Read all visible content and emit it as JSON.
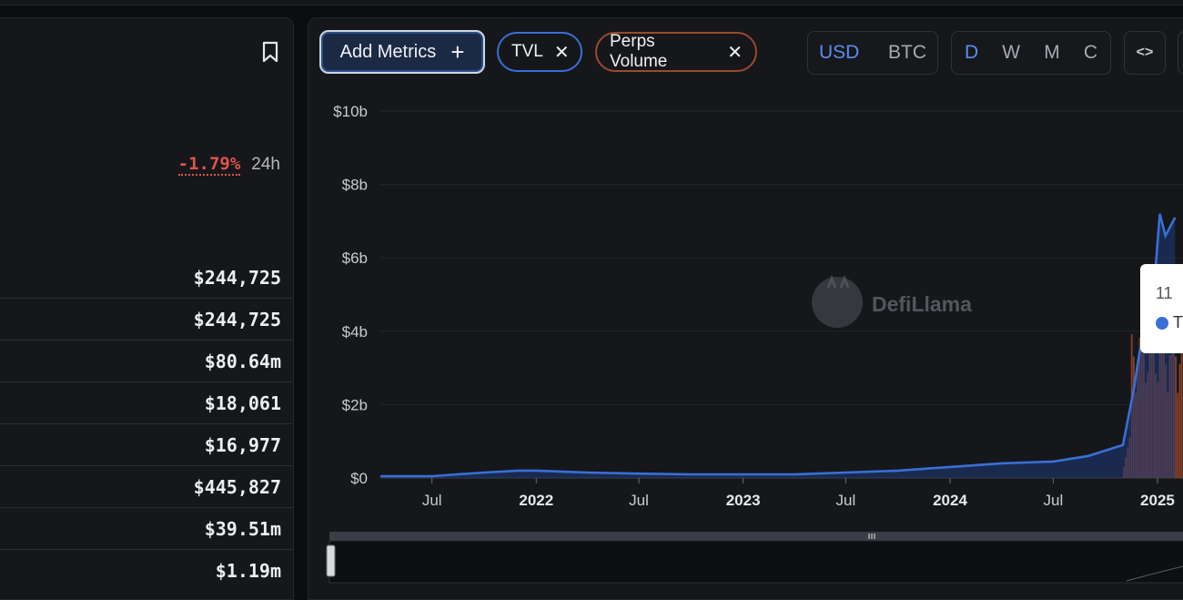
{
  "left": {
    "change": {
      "value": "-1.79%",
      "period": "24h"
    },
    "rows": [
      "$244,725",
      "$244,725",
      "$80.64m",
      "$18,061",
      "$16,977",
      "$445,827",
      "$39.51m",
      "$1.19m"
    ]
  },
  "toolbar": {
    "add_metrics_label": "Add Metrics",
    "add_icon": "+",
    "chips": [
      {
        "label": "TVL",
        "close": "✕",
        "color": "#3a6fd6"
      },
      {
        "label": "Perps Volume",
        "close": "✕",
        "color": "#9a4a2c"
      }
    ],
    "currency": [
      "USD",
      "BTC"
    ],
    "currency_active": "USD",
    "intervals": [
      "D",
      "W",
      "M",
      "C"
    ],
    "interval_active": "D",
    "embed_icon": "<>"
  },
  "chart": {
    "watermark": "DefiLlama",
    "tooltip": {
      "date": "11",
      "series_initial": "T"
    }
  },
  "chart_data": {
    "type": "line",
    "y_ticks": [
      "$0",
      "$2b",
      "$4b",
      "$6b",
      "$8b",
      "$10b"
    ],
    "ylim": [
      0,
      10
    ],
    "y_unit": "billion USD",
    "x_ticks": [
      "Jul",
      "2022",
      "Jul",
      "2023",
      "Jul",
      "2024",
      "Jul",
      "2025"
    ],
    "grid": true,
    "series": [
      {
        "name": "TVL",
        "color": "#3a6fd6",
        "points": [
          [
            "2021-04",
            0.05
          ],
          [
            "2021-07",
            0.05
          ],
          [
            "2021-10",
            0.15
          ],
          [
            "2021-12",
            0.2
          ],
          [
            "2022-01",
            0.2
          ],
          [
            "2022-04",
            0.15
          ],
          [
            "2022-07",
            0.12
          ],
          [
            "2022-10",
            0.1
          ],
          [
            "2023-01",
            0.1
          ],
          [
            "2023-04",
            0.1
          ],
          [
            "2023-07",
            0.15
          ],
          [
            "2023-10",
            0.2
          ],
          [
            "2024-01",
            0.3
          ],
          [
            "2024-04",
            0.4
          ],
          [
            "2024-07",
            0.45
          ],
          [
            "2024-09",
            0.6
          ],
          [
            "2024-11",
            0.9
          ],
          [
            "2024-11-20",
            2.4
          ],
          [
            "2024-12",
            3.5
          ],
          [
            "2024-12-20",
            4.0
          ],
          [
            "2025-01-05",
            7.2
          ],
          [
            "2025-01-15",
            6.6
          ],
          [
            "2025-02",
            7.1
          ]
        ]
      },
      {
        "name": "Perps Volume",
        "color": "#9a4a2c",
        "points": [
          [
            "2024-11",
            0.2
          ],
          [
            "2024-12",
            1.5
          ],
          [
            "2025-01",
            3.5
          ],
          [
            "2025-02",
            3.0
          ]
        ]
      }
    ]
  }
}
